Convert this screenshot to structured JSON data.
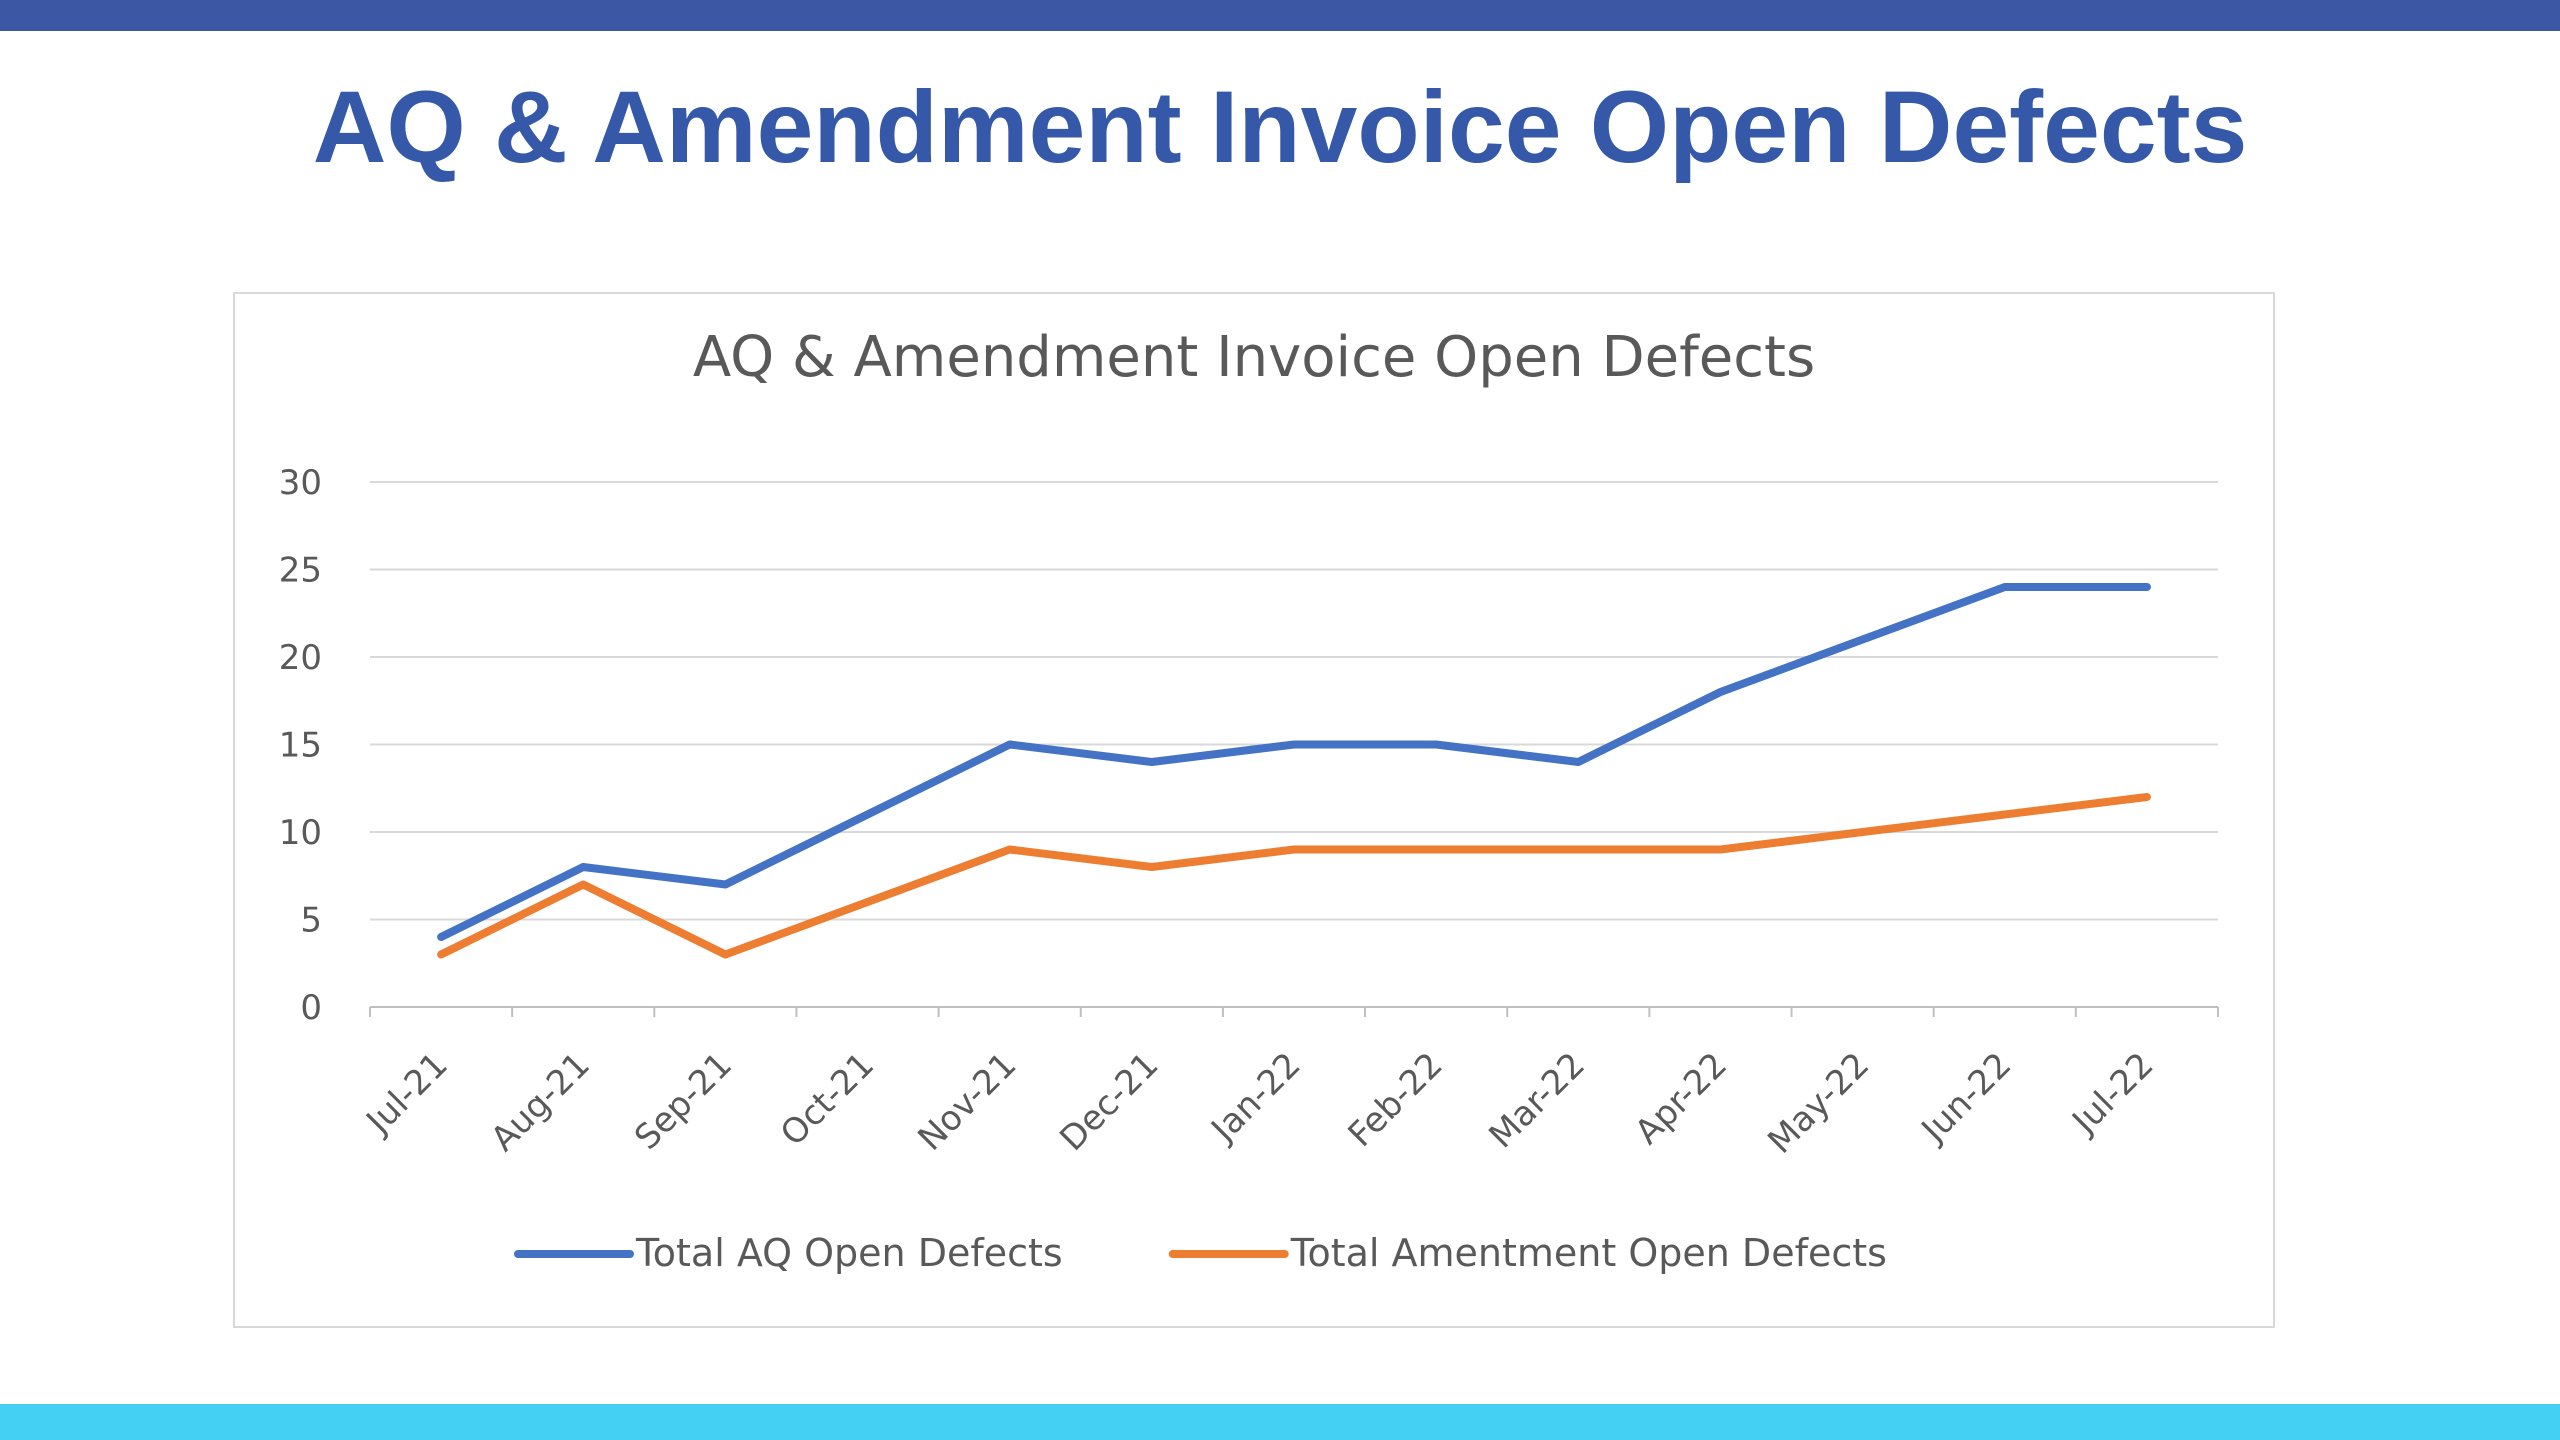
{
  "slide": {
    "title": "AQ & Amendment Invoice Open Defects"
  },
  "colors": {
    "header_bar": "#3c57a3",
    "footer_bar": "#43d0f2",
    "title": "#3558a8",
    "series_aq": "#4472c4",
    "series_amend": "#ed7d31"
  },
  "chart_data": {
    "type": "line",
    "title": "AQ & Amendment  Invoice Open Defects",
    "xlabel": "",
    "ylabel": "",
    "categories": [
      "Jul-21",
      "Aug-21",
      "Sep-21",
      "Oct-21",
      "Nov-21",
      "Dec-21",
      "Jan-22",
      "Feb-22",
      "Mar-22",
      "Apr-22",
      "May-22",
      "Jun-22",
      "Jul-22"
    ],
    "ylim": [
      0,
      30
    ],
    "yticks": [
      "0",
      "5",
      "10",
      "15",
      "20",
      "25",
      "30"
    ],
    "grid": true,
    "legend_position": "bottom",
    "series": [
      {
        "name": "Total AQ Open Defects",
        "color": "#4472c4",
        "values": [
          4,
          8,
          7,
          11,
          15,
          14,
          15,
          15,
          14,
          18,
          21,
          24,
          24
        ]
      },
      {
        "name": "Total Amentment Open Defects",
        "color": "#ed7d31",
        "values": [
          3,
          7,
          3,
          6,
          9,
          8,
          9,
          9,
          9,
          9,
          10,
          11,
          12
        ]
      }
    ]
  }
}
